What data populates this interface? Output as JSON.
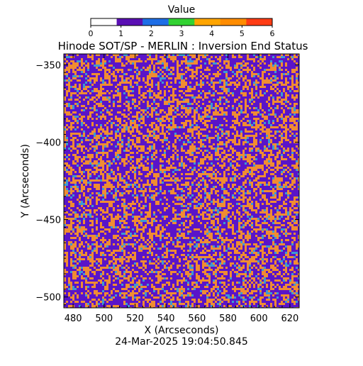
{
  "chart_data": {
    "type": "heatmap",
    "title": "Hinode SOT/SP - MERLIN : Inversion End Status",
    "xlabel": "X (Arcseconds)",
    "ylabel": "Y (Arcseconds)",
    "footer": "24-Mar-2025 19:04:50.845",
    "xlim": [
      474,
      626
    ],
    "ylim": [
      -507,
      -343
    ],
    "x_ticks": [
      480,
      500,
      520,
      540,
      560,
      580,
      600,
      620
    ],
    "y_ticks": [
      -350,
      -400,
      -450,
      -500
    ],
    "colorbar": {
      "label": "Value",
      "min": 0,
      "max": 6,
      "tick_values": [
        0,
        1,
        2,
        3,
        4,
        5,
        6
      ],
      "colors": [
        "#ffffff",
        "#5a0fb4",
        "#1e6ee6",
        "#32d232",
        "#ffa500",
        "#ff8c00",
        "#ff3c14"
      ]
    },
    "field_palette": {
      "dominant_value_1": "#5a14c8",
      "dominant_value_2": "#f08c32",
      "minor_value_3": "#3c9bd2"
    },
    "value_mix": {
      "1": 0.55,
      "2": 0.38,
      "3": 0.07
    }
  }
}
